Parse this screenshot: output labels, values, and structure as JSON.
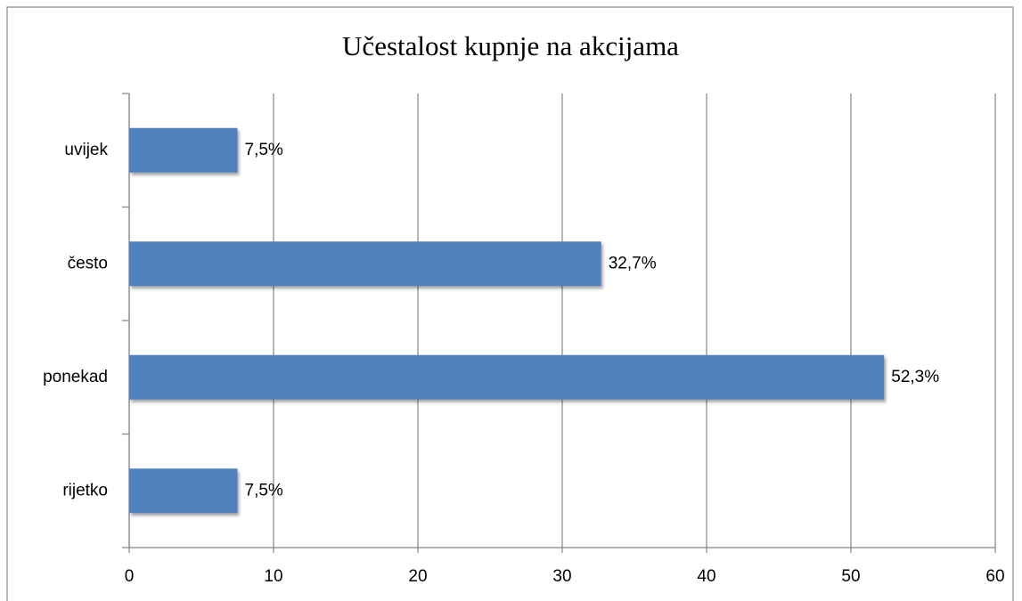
{
  "chart_data": {
    "type": "bar",
    "orientation": "horizontal",
    "title": "Učestalost kupnje na akcijama",
    "categories": [
      "uvijek",
      "često",
      "ponekad",
      "rijetko"
    ],
    "values": [
      7.5,
      32.7,
      52.3,
      7.5
    ],
    "value_labels": [
      "7,5%",
      "32,7%",
      "52,3%",
      "7,5%"
    ],
    "color": "#4f81bd",
    "xlim": [
      0,
      60
    ],
    "xticks": [
      0,
      10,
      20,
      30,
      40,
      50,
      60
    ],
    "grid": true
  }
}
